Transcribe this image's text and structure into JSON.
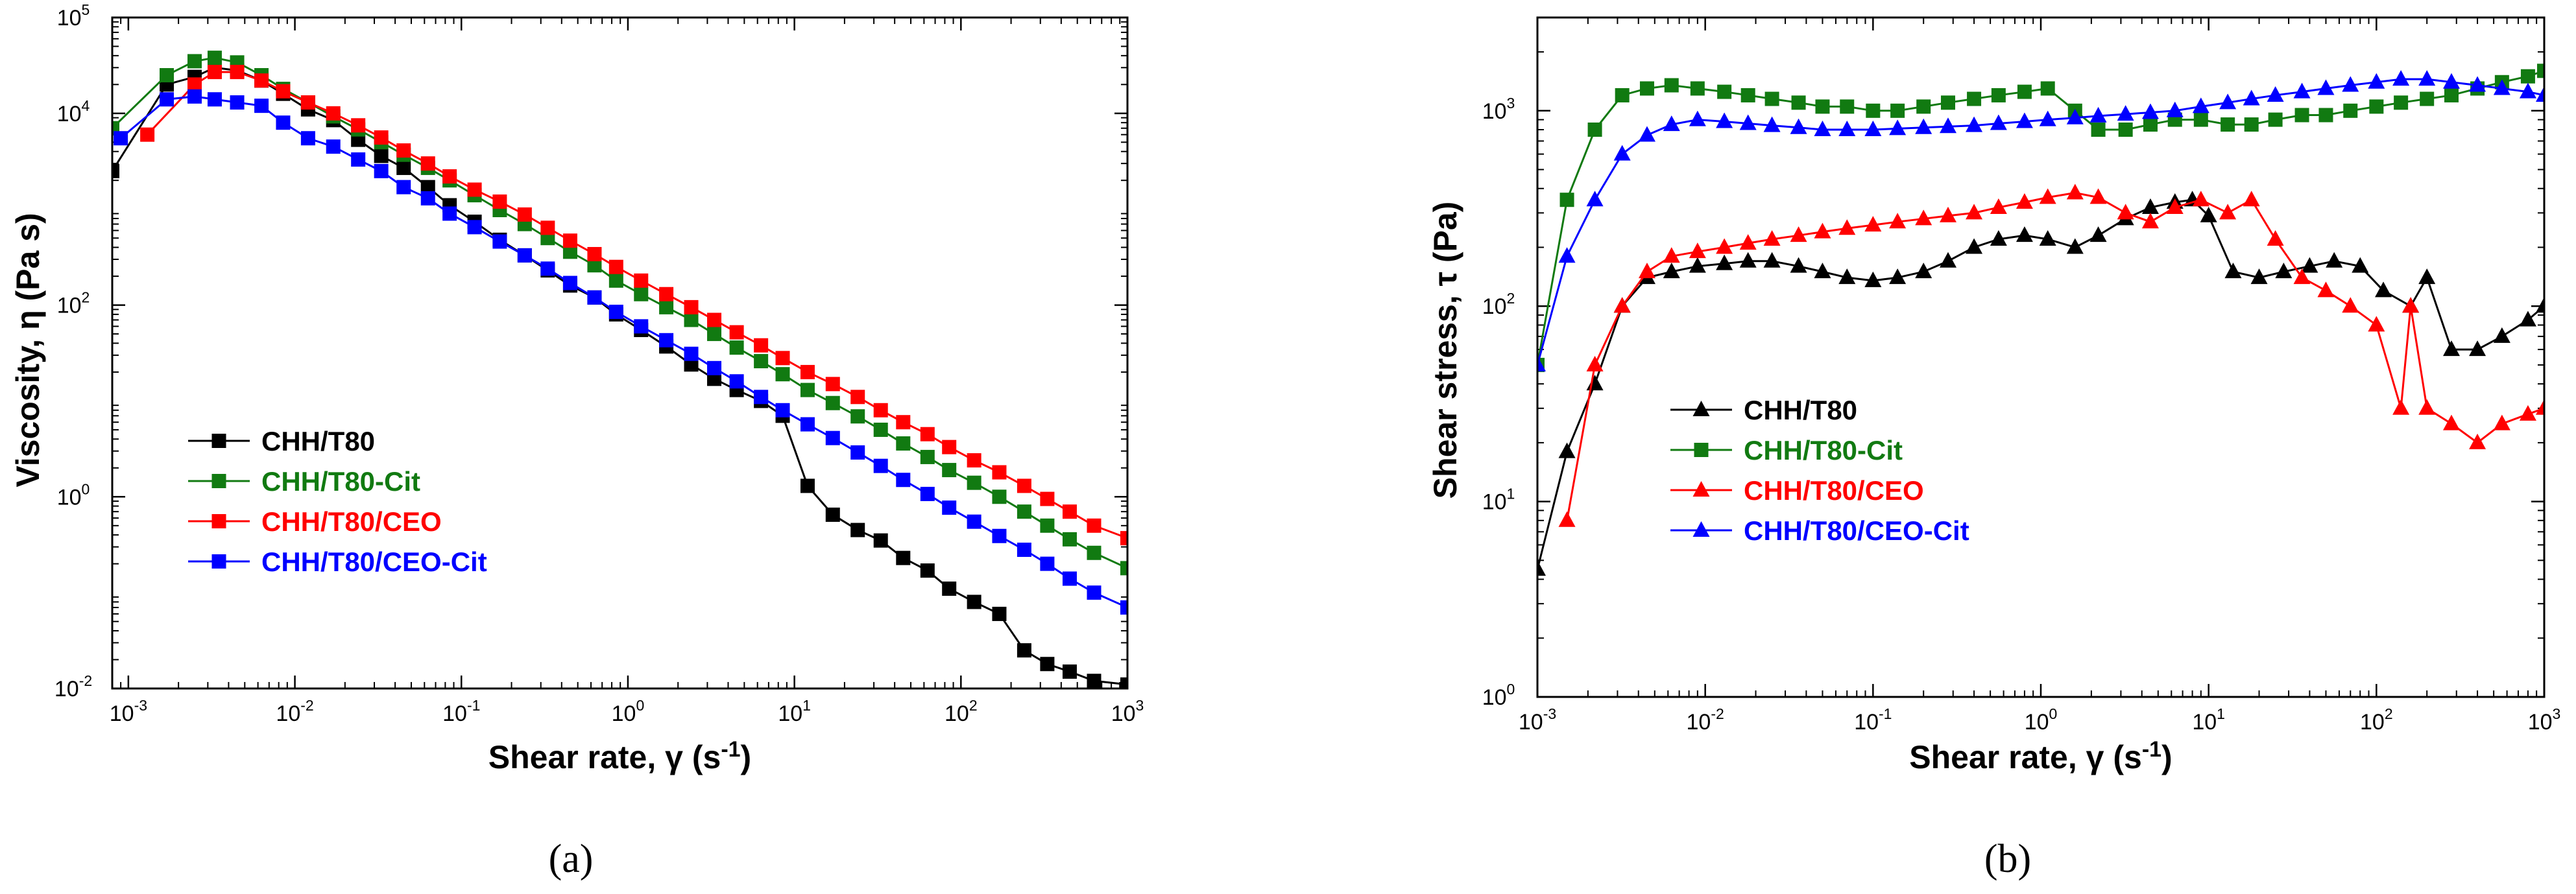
{
  "chart_data": [
    {
      "type": "line",
      "panel_label": "(a)",
      "xlabel": {
        "main": "Shear rate, γ (s",
        "sup": "-1",
        "end": ")"
      },
      "ylabel": "Viscosity, η (Pa s)",
      "xscale": "log",
      "yscale": "log",
      "xlim": [
        0.0008,
        1000
      ],
      "ylim": [
        0.01,
        100000
      ],
      "x_ticks": [
        {
          "value": 0.001,
          "base": "10",
          "exp": "-3"
        },
        {
          "value": 0.01,
          "base": "10",
          "exp": "-2"
        },
        {
          "value": 0.1,
          "base": "10",
          "exp": "-1"
        },
        {
          "value": 1,
          "base": "10",
          "exp": "0"
        },
        {
          "value": 10,
          "base": "10",
          "exp": "1"
        },
        {
          "value": 100,
          "base": "10",
          "exp": "2"
        },
        {
          "value": 1000,
          "base": "10",
          "exp": "3"
        }
      ],
      "y_ticks": [
        {
          "value": 0.01,
          "base": "10",
          "exp": "-2"
        },
        {
          "value": 1,
          "base": "10",
          "exp": "0"
        },
        {
          "value": 100,
          "base": "10",
          "exp": "2"
        },
        {
          "value": 10000,
          "base": "10",
          "exp": "4"
        },
        {
          "value": 100000,
          "base": "10",
          "exp": "5"
        }
      ],
      "legend_position": "lower-left",
      "series": [
        {
          "name": "CHH/T80",
          "color": "#000000",
          "marker": "square",
          "x": [
            0.0008,
            0.0017,
            0.0025,
            0.0033,
            0.0045,
            0.0063,
            0.0085,
            0.012,
            0.017,
            0.024,
            0.033,
            0.045,
            0.063,
            0.085,
            0.12,
            0.17,
            0.24,
            0.33,
            0.45,
            0.63,
            0.85,
            1.2,
            1.7,
            2.4,
            3.3,
            4.5,
            6.3,
            8.5,
            12,
            17,
            24,
            33,
            45,
            63,
            85,
            120,
            170,
            240,
            330,
            450,
            630,
            1000
          ],
          "y": [
            2500,
            20000,
            24000,
            30000,
            28000,
            22000,
            16000,
            11000,
            8500,
            5300,
            3600,
            2700,
            1700,
            1100,
            740,
            480,
            330,
            230,
            160,
            120,
            80,
            55,
            37,
            24,
            17,
            13,
            10,
            7,
            1.3,
            0.65,
            0.45,
            0.35,
            0.23,
            0.17,
            0.11,
            0.08,
            0.06,
            0.025,
            0.018,
            0.015,
            0.012,
            0.011
          ]
        },
        {
          "name": "CHH/T80-Cit",
          "color": "#117a11",
          "marker": "square",
          "x": [
            0.0008,
            0.0017,
            0.0025,
            0.0033,
            0.0045,
            0.0063,
            0.0085,
            0.012,
            0.017,
            0.024,
            0.033,
            0.045,
            0.063,
            0.085,
            0.12,
            0.17,
            0.24,
            0.33,
            0.45,
            0.63,
            0.85,
            1.2,
            1.7,
            2.4,
            3.3,
            4.5,
            6.3,
            8.5,
            12,
            17,
            24,
            33,
            45,
            63,
            85,
            120,
            170,
            240,
            330,
            450,
            630,
            1000
          ],
          "y": [
            7000,
            25000,
            35000,
            38000,
            34000,
            25000,
            18000,
            13000,
            9300,
            6800,
            5000,
            3700,
            2700,
            2000,
            1400,
            980,
            700,
            500,
            360,
            260,
            180,
            130,
            95,
            70,
            50,
            36,
            26,
            19,
            13,
            9.5,
            6.9,
            5,
            3.6,
            2.6,
            1.9,
            1.4,
            1,
            0.7,
            0.5,
            0.36,
            0.26,
            0.18
          ]
        },
        {
          "name": "CHH/T80/CEO",
          "color": "#ff0000",
          "marker": "square",
          "x": [
            0.0013,
            0.0025,
            0.0033,
            0.0045,
            0.0063,
            0.0085,
            0.012,
            0.017,
            0.024,
            0.033,
            0.045,
            0.063,
            0.085,
            0.12,
            0.17,
            0.24,
            0.33,
            0.45,
            0.63,
            0.85,
            1.2,
            1.7,
            2.4,
            3.3,
            4.5,
            6.3,
            8.5,
            12,
            17,
            24,
            33,
            45,
            63,
            85,
            120,
            170,
            240,
            330,
            450,
            630,
            1000
          ],
          "y": [
            6000,
            20000,
            27000,
            27000,
            22000,
            17000,
            13000,
            10000,
            7500,
            5600,
            4100,
            3000,
            2200,
            1600,
            1200,
            880,
            640,
            470,
            340,
            250,
            180,
            130,
            95,
            70,
            52,
            38,
            28,
            20,
            15,
            11,
            8,
            6,
            4.5,
            3.3,
            2.4,
            1.8,
            1.3,
            0.95,
            0.7,
            0.5,
            0.37
          ]
        },
        {
          "name": "CHH/T80/CEO-Cit",
          "color": "#0000ff",
          "marker": "square",
          "x": [
            0.0009,
            0.0017,
            0.0025,
            0.0033,
            0.0045,
            0.0063,
            0.0085,
            0.012,
            0.017,
            0.024,
            0.033,
            0.045,
            0.063,
            0.085,
            0.12,
            0.17,
            0.24,
            0.33,
            0.45,
            0.63,
            0.85,
            1.2,
            1.7,
            2.4,
            3.3,
            4.5,
            6.3,
            8.5,
            12,
            17,
            24,
            33,
            45,
            63,
            85,
            120,
            170,
            240,
            330,
            450,
            630,
            1000
          ],
          "y": [
            5500,
            14000,
            15000,
            14000,
            13000,
            12000,
            8000,
            5500,
            4500,
            3300,
            2500,
            1700,
            1300,
            900,
            650,
            460,
            330,
            240,
            170,
            120,
            85,
            60,
            43,
            31,
            22,
            16,
            11,
            8,
            5.7,
            4.1,
            2.9,
            2.1,
            1.5,
            1.07,
            0.77,
            0.55,
            0.39,
            0.28,
            0.2,
            0.14,
            0.1,
            0.07
          ]
        }
      ]
    },
    {
      "type": "line",
      "panel_label": "(b)",
      "xlabel": {
        "main": "Shear rate, γ (s",
        "sup": "-1",
        "end": ")"
      },
      "ylabel": "Shear stress, τ (Pa)",
      "xscale": "log",
      "yscale": "log",
      "xlim": [
        0.001,
        1000
      ],
      "ylim": [
        1,
        3000
      ],
      "x_ticks": [
        {
          "value": 0.001,
          "base": "10",
          "exp": "-3"
        },
        {
          "value": 0.01,
          "base": "10",
          "exp": "-2"
        },
        {
          "value": 0.1,
          "base": "10",
          "exp": "-1"
        },
        {
          "value": 1,
          "base": "10",
          "exp": "0"
        },
        {
          "value": 10,
          "base": "10",
          "exp": "1"
        },
        {
          "value": 100,
          "base": "10",
          "exp": "2"
        },
        {
          "value": 1000,
          "base": "10",
          "exp": "3"
        }
      ],
      "y_ticks": [
        {
          "value": 1,
          "base": "10",
          "exp": "0"
        },
        {
          "value": 10,
          "base": "10",
          "exp": "1"
        },
        {
          "value": 100,
          "base": "10",
          "exp": "2"
        },
        {
          "value": 1000,
          "base": "10",
          "exp": "3"
        }
      ],
      "legend_position": "center-left",
      "series": [
        {
          "name": "CHH/T80",
          "color": "#000000",
          "marker": "triangle",
          "x": [
            0.001,
            0.0015,
            0.0022,
            0.0032,
            0.0045,
            0.0063,
            0.009,
            0.013,
            0.018,
            0.025,
            0.036,
            0.05,
            0.07,
            0.1,
            0.14,
            0.2,
            0.28,
            0.4,
            0.56,
            0.8,
            1.1,
            1.6,
            2.2,
            3.2,
            4.5,
            6.3,
            8,
            10,
            14,
            20,
            28,
            40,
            56,
            80,
            110,
            160,
            200,
            280,
            400,
            560,
            800,
            1000
          ],
          "y": [
            4.5,
            18,
            40,
            100,
            140,
            150,
            160,
            165,
            170,
            170,
            160,
            150,
            140,
            135,
            140,
            150,
            170,
            200,
            220,
            230,
            220,
            200,
            230,
            280,
            320,
            340,
            350,
            290,
            150,
            140,
            150,
            160,
            170,
            160,
            120,
            100,
            140,
            60,
            60,
            70,
            85,
            100
          ]
        },
        {
          "name": "CHH/T80-Cit",
          "color": "#117a11",
          "marker": "square",
          "x": [
            0.001,
            0.0015,
            0.0022,
            0.0032,
            0.0045,
            0.0063,
            0.009,
            0.013,
            0.018,
            0.025,
            0.036,
            0.05,
            0.07,
            0.1,
            0.14,
            0.2,
            0.28,
            0.4,
            0.56,
            0.8,
            1.1,
            1.6,
            2.2,
            3.2,
            4.5,
            6.3,
            9,
            13,
            18,
            25,
            36,
            50,
            70,
            100,
            140,
            200,
            280,
            400,
            560,
            800,
            1000
          ],
          "y": [
            50,
            350,
            800,
            1200,
            1300,
            1350,
            1300,
            1250,
            1200,
            1150,
            1100,
            1050,
            1050,
            1000,
            1000,
            1050,
            1100,
            1150,
            1200,
            1250,
            1300,
            1000,
            800,
            800,
            850,
            900,
            900,
            850,
            850,
            900,
            950,
            950,
            1000,
            1050,
            1100,
            1150,
            1200,
            1300,
            1400,
            1500,
            1600
          ]
        },
        {
          "name": "CHH/T80/CEO",
          "color": "#ff0000",
          "marker": "triangle",
          "x": [
            0.0015,
            0.0022,
            0.0032,
            0.0045,
            0.0063,
            0.009,
            0.013,
            0.018,
            0.025,
            0.036,
            0.05,
            0.07,
            0.1,
            0.14,
            0.2,
            0.28,
            0.4,
            0.56,
            0.8,
            1.1,
            1.6,
            2.2,
            3.2,
            4.5,
            6.3,
            9,
            13,
            18,
            25,
            36,
            50,
            70,
            100,
            140,
            160,
            200,
            280,
            400,
            560,
            800,
            1000
          ],
          "y": [
            8,
            50,
            100,
            150,
            180,
            190,
            200,
            210,
            220,
            230,
            240,
            250,
            260,
            270,
            280,
            290,
            300,
            320,
            340,
            360,
            380,
            360,
            300,
            270,
            320,
            350,
            300,
            350,
            220,
            140,
            120,
            100,
            80,
            30,
            100,
            30,
            25,
            20,
            25,
            28,
            30
          ]
        },
        {
          "name": "CHH/T80/CEO-Cit",
          "color": "#0000ff",
          "marker": "triangle",
          "x": [
            0.001,
            0.0015,
            0.0022,
            0.0032,
            0.0045,
            0.0063,
            0.009,
            0.013,
            0.018,
            0.025,
            0.036,
            0.05,
            0.07,
            0.1,
            0.14,
            0.2,
            0.28,
            0.4,
            0.56,
            0.8,
            1.1,
            1.6,
            2.2,
            3.2,
            4.5,
            6.3,
            9,
            13,
            18,
            25,
            36,
            50,
            70,
            100,
            140,
            200,
            280,
            400,
            560,
            800,
            1000
          ],
          "y": [
            50,
            180,
            350,
            600,
            750,
            850,
            900,
            880,
            860,
            840,
            820,
            800,
            800,
            800,
            810,
            820,
            830,
            840,
            860,
            880,
            900,
            920,
            940,
            960,
            980,
            1000,
            1050,
            1100,
            1150,
            1200,
            1250,
            1300,
            1350,
            1400,
            1450,
            1450,
            1400,
            1350,
            1300,
            1250,
            1200
          ]
        }
      ]
    }
  ]
}
